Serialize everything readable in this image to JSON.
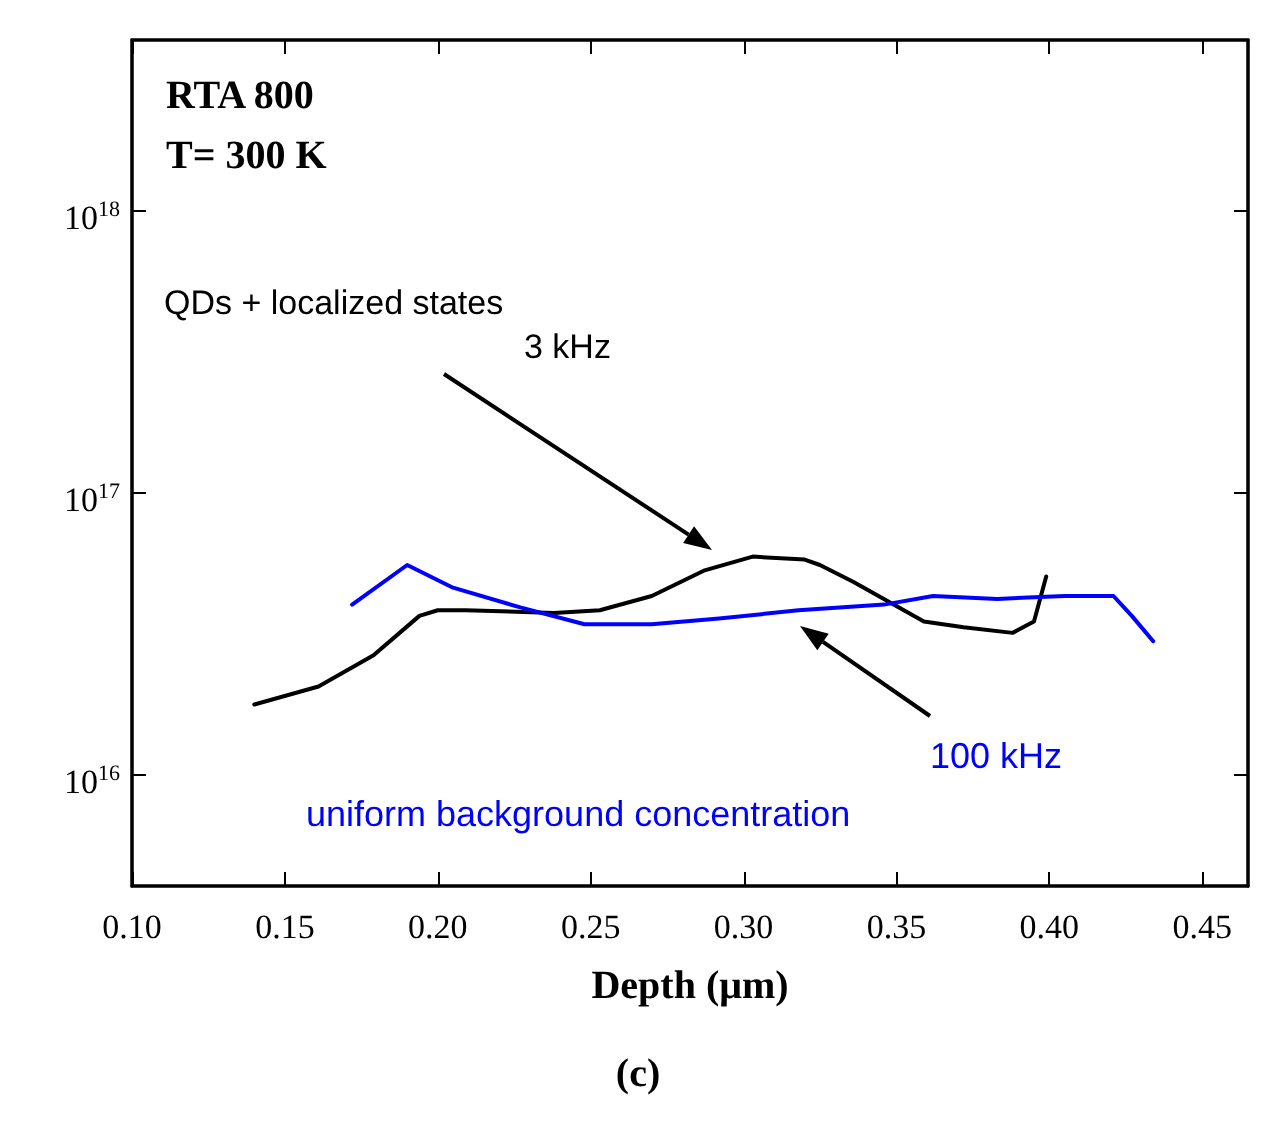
{
  "chart_data": {
    "type": "line",
    "xlabel": "Depth (μm)",
    "title": "(c)",
    "x": [
      0.14,
      0.161,
      0.179,
      0.194,
      0.2,
      0.209,
      0.238,
      0.253,
      0.27,
      0.287,
      0.303,
      0.32,
      0.325,
      0.336,
      0.359,
      0.372,
      0.388,
      0.395,
      0.399
    ],
    "series": [
      {
        "color": "#000000",
        "values": [
          1.76e+16,
          2.04e+16,
          2.63e+16,
          3.63e+16,
          3.8e+16,
          3.8e+16,
          3.72e+16,
          3.8e+16,
          4.27e+16,
          5.25e+16,
          5.89e+16,
          5.75e+16,
          5.5e+16,
          4.79e+16,
          3.47e+16,
          3.31e+16,
          3.16e+16,
          3.47e+16,
          5.01e+16
        ]
      },
      {
        "color": "#0000ff",
        "x": [
          0.172,
          0.19,
          0.205,
          0.227,
          0.248,
          0.27,
          0.292,
          0.318,
          0.346,
          0.362,
          0.383,
          0.405,
          0.421,
          0.427,
          0.434
        ],
        "values": [
          3.98e+16,
          5.5e+16,
          4.57e+16,
          3.89e+16,
          3.39e+16,
          3.39e+16,
          3.55e+16,
          3.8e+16,
          3.98e+16,
          4.27e+16,
          4.17e+16,
          4.27e+16,
          4.27e+16,
          3.63e+16,
          2.95e+16
        ]
      }
    ],
    "annotations": [
      "RTA 800",
      "T= 300 K",
      "QDs + localized states",
      "3 kHz",
      "100 kHz",
      "uniform background concentration"
    ],
    "xlim": [
      0.1,
      0.465
    ],
    "xticks": [
      {
        "value": 0.1,
        "label": "0.10"
      },
      0.15,
      {
        "value": 0.2,
        "label": "0.20"
      },
      0.25,
      {
        "value": 0.3,
        "label": "0.30"
      },
      0.35,
      {
        "value": 0.4,
        "label": "0.40"
      },
      0.45
    ],
    "log": true,
    "ylim": [
      4000000000000000.0,
      4e+18
    ],
    "yticks": [
      {
        "value": 1e+16,
        "label": "10$^{16}$"
      },
      {
        "value": 1e+17,
        "label": "10$^{17}$"
      },
      {
        "value": 1e+18,
        "label": "10$^{18}$"
      }
    ],
    "grid": false,
    "marker": "none",
    "line_style": "solid"
  }
}
